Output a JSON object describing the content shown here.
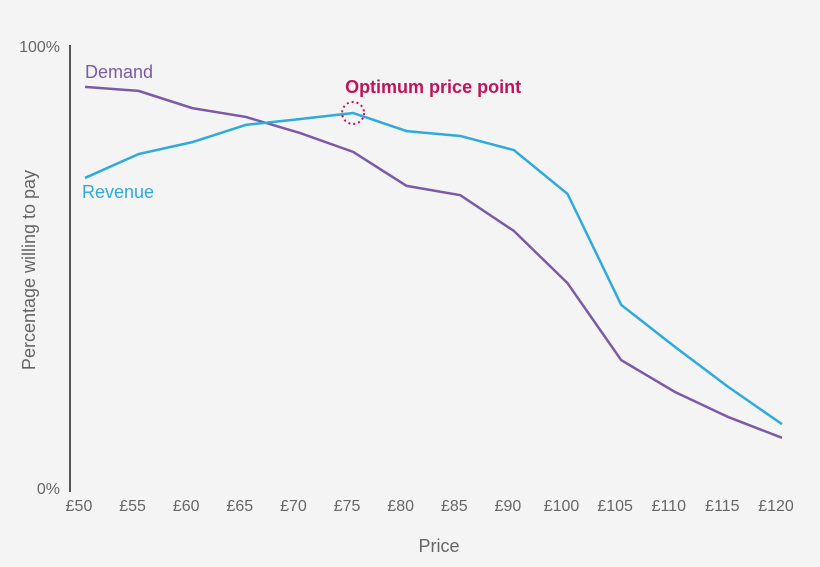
{
  "chart_data": {
    "type": "line",
    "y_label": "Percentage willing to pay",
    "x_label": "Price",
    "annotation": "Optimum price point",
    "annotation_color": "#c0135a",
    "categories": [
      "£50",
      "£55",
      "£60",
      "£65",
      "£70",
      "£75",
      "£80",
      "£85",
      "£90",
      "£100",
      "£105",
      "£110",
      "£115",
      "£120"
    ],
    "series": [
      {
        "name": "Demand",
        "color": "#7b5aa6",
        "values": [
          91.2,
          90.3,
          86.4,
          84.4,
          80.8,
          76.5,
          68.8,
          66.7,
          58.6,
          46.8,
          29.4,
          22.2,
          16.5,
          11.8
        ]
      },
      {
        "name": "Revenue",
        "color": "#2eaadc",
        "values": [
          70.6,
          76.0,
          78.7,
          82.6,
          83.9,
          85.3,
          81.2,
          80.1,
          76.9,
          67.0,
          41.9,
          32.4,
          23.3,
          14.9
        ]
      }
    ],
    "ylim": [
      0,
      100
    ],
    "yticks": [
      {
        "value": 0,
        "label": "0%"
      },
      {
        "value": 100,
        "label": "100%"
      }
    ],
    "grid": false
  }
}
